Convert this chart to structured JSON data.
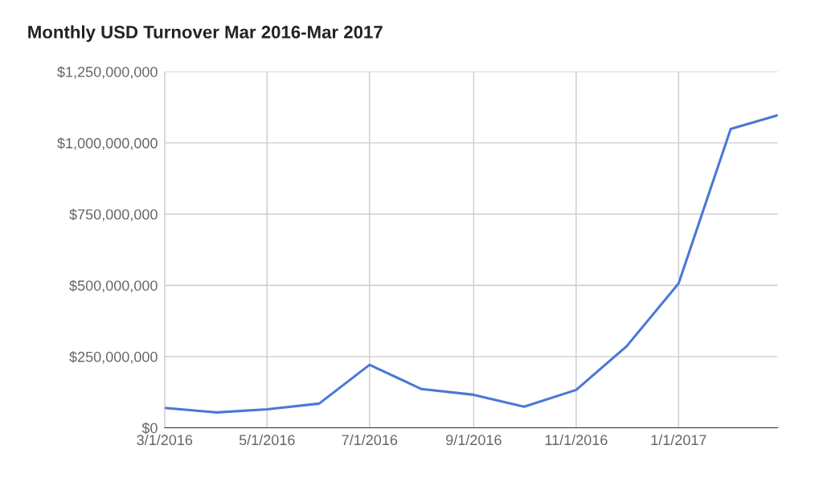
{
  "chart_data": {
    "type": "line",
    "title": "Monthly USD Turnover Mar 2016-Mar 2017",
    "x": [
      "2016-03-01",
      "2016-04-01",
      "2016-05-01",
      "2016-06-01",
      "2016-07-01",
      "2016-08-01",
      "2016-09-01",
      "2016-10-01",
      "2016-11-01",
      "2016-12-01",
      "2017-01-01",
      "2017-02-01",
      "2017-03-01"
    ],
    "series": [
      {
        "color": "#4a78d6",
        "values": [
          70000000,
          54000000,
          65000000,
          85000000,
          221000000,
          136000000,
          116000000,
          74000000,
          133000000,
          286000000,
          507000000,
          1049000000,
          1097000000
        ]
      }
    ],
    "xlim": [
      "2016-03-01",
      "2017-03-01"
    ],
    "xticks": [
      {
        "value": "2016-03-01",
        "label": "3/1/2016"
      },
      {
        "value": "2016-05-01",
        "label": "5/1/2016"
      },
      {
        "value": "2016-07-01",
        "label": "7/1/2016"
      },
      {
        "value": "2016-09-01",
        "label": "9/1/2016"
      },
      {
        "value": "2016-11-01",
        "label": "11/1/2016"
      },
      {
        "value": "2017-01-01",
        "label": "1/1/2017"
      }
    ],
    "ylim": [
      0,
      1250000000
    ],
    "yticks": [
      {
        "value": 0,
        "label": "$0"
      },
      {
        "value": 250000000,
        "label": "$250,000,000"
      },
      {
        "value": 500000000,
        "label": "$500,000,000"
      },
      {
        "value": 750000000,
        "label": "$750,000,000"
      },
      {
        "value": 1000000000,
        "label": "$1,000,000,000"
      },
      {
        "value": 1250000000,
        "label": "$1,250,000,000"
      }
    ],
    "grid": true,
    "legend": false
  }
}
